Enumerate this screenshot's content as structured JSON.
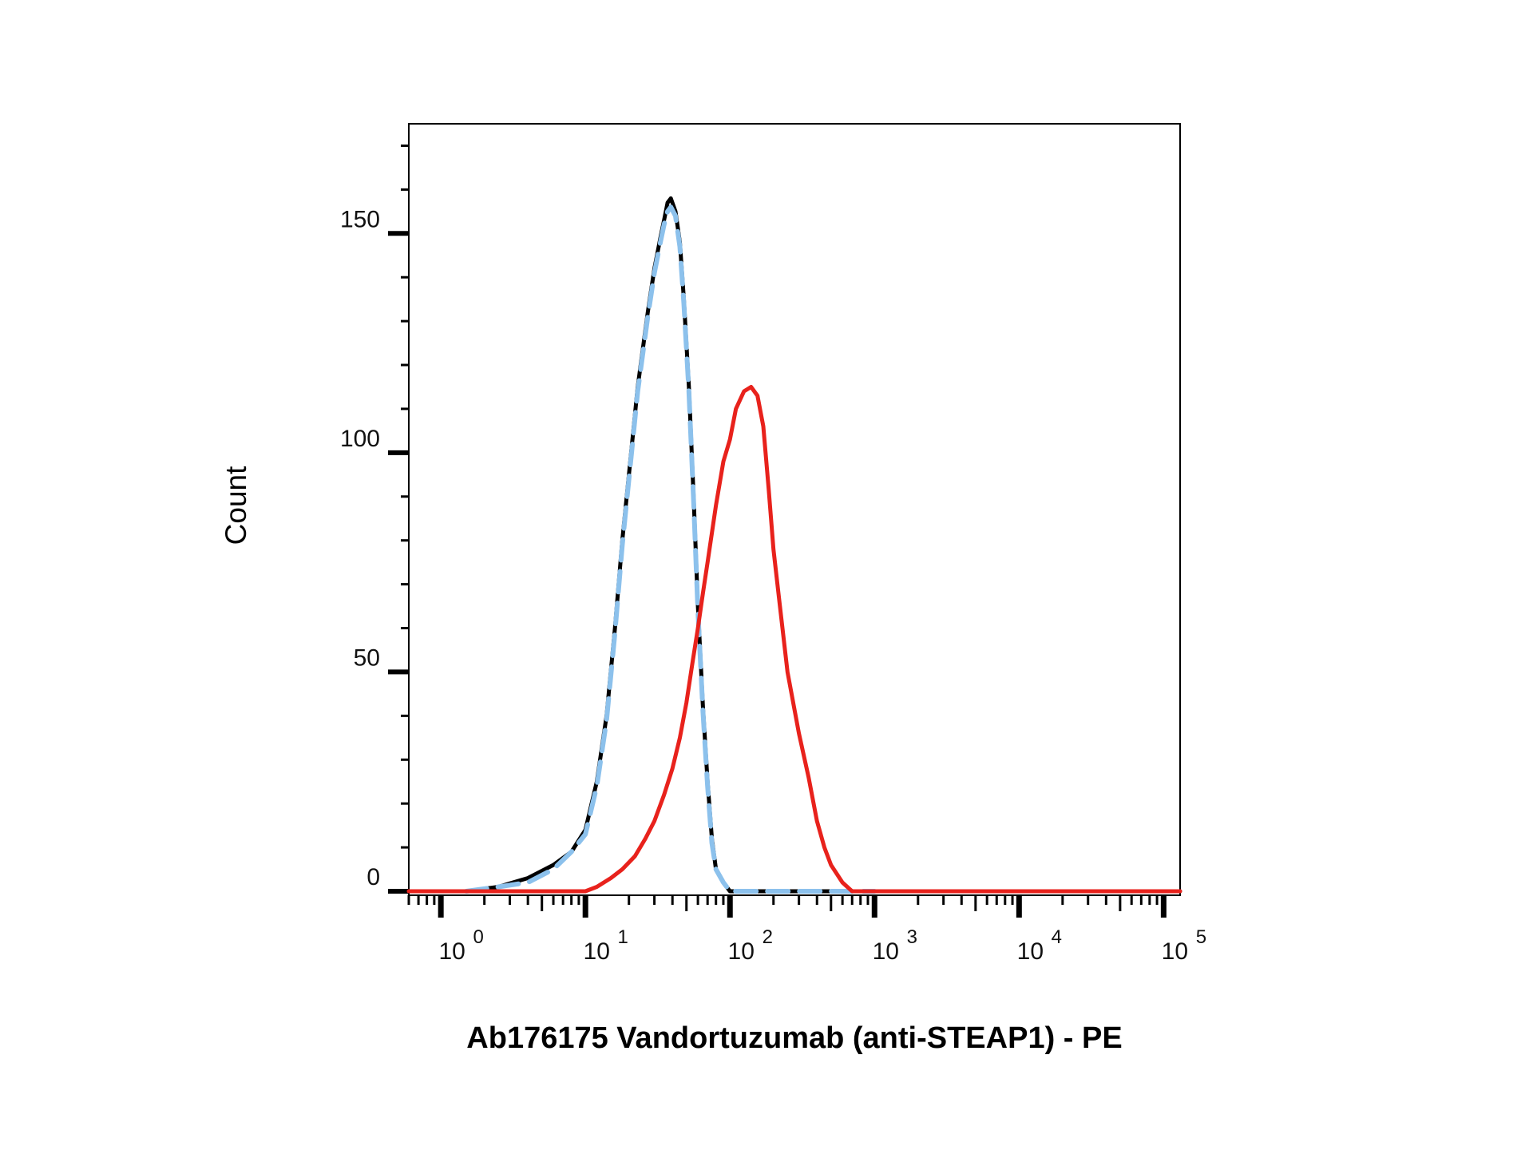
{
  "chart_data": {
    "type": "line",
    "title": "",
    "xlabel": "Ab176175 Vandortuzumab (anti-STEAP1) - PE",
    "ylabel": "Count",
    "x_scale": "log",
    "xlim": [
      0.6,
      130000
    ],
    "ylim": [
      0,
      175
    ],
    "grid": false,
    "legend": "none",
    "y_ticks": [
      {
        "value": 0,
        "label": "0"
      },
      {
        "value": 50,
        "label": "50"
      },
      {
        "value": 100,
        "label": "100"
      },
      {
        "value": 150,
        "label": "150"
      }
    ],
    "x_ticks": [
      {
        "value": 1,
        "base": "10",
        "exp": "0"
      },
      {
        "value": 10,
        "base": "10",
        "exp": "1"
      },
      {
        "value": 100,
        "base": "10",
        "exp": "2"
      },
      {
        "value": 1000,
        "base": "10",
        "exp": "3"
      },
      {
        "value": 10000,
        "base": "10",
        "exp": "4"
      },
      {
        "value": 100000,
        "base": "10",
        "exp": "5"
      }
    ],
    "series": [
      {
        "color": "#000000",
        "dash": "solid",
        "x": [
          0.6,
          1.5,
          2.5,
          4,
          6,
          8,
          10,
          12,
          14,
          16,
          18,
          20,
          23,
          27,
          30,
          33,
          35,
          37,
          39,
          42,
          45,
          48,
          52,
          56,
          60,
          65,
          70,
          75,
          80,
          90,
          100,
          115,
          130,
          200,
          400,
          1000,
          130000
        ],
        "y": [
          0,
          0,
          1,
          3,
          6,
          9,
          14,
          25,
          40,
          60,
          80,
          95,
          115,
          132,
          142,
          149,
          153,
          157,
          158,
          155,
          148,
          135,
          115,
          90,
          65,
          42,
          25,
          12,
          5,
          2,
          0,
          0,
          0,
          0,
          0,
          0,
          0
        ]
      },
      {
        "color": "#8cc1ec",
        "dash": "dashed",
        "x": [
          1.5,
          2.5,
          4,
          6,
          8,
          10,
          12,
          14,
          16,
          18,
          20,
          23,
          27,
          30,
          33,
          35,
          37,
          39,
          42,
          45,
          48,
          52,
          56,
          60,
          65,
          70,
          75,
          80,
          90,
          100,
          115,
          130,
          200,
          400,
          1000
        ],
        "y": [
          0,
          1,
          2,
          5,
          9,
          13,
          24,
          39,
          59,
          79,
          94,
          114,
          131,
          141,
          148,
          152,
          155,
          156,
          154,
          147,
          134,
          114,
          89,
          64,
          41,
          24,
          11,
          5,
          2,
          0,
          0,
          0,
          0,
          0,
          0
        ]
      },
      {
        "color": "#e8221c",
        "dash": "solid",
        "x": [
          0.6,
          5,
          10,
          12,
          15,
          18,
          22,
          26,
          30,
          35,
          40,
          45,
          50,
          55,
          60,
          65,
          70,
          80,
          90,
          100,
          110,
          125,
          140,
          155,
          170,
          185,
          200,
          220,
          250,
          300,
          350,
          400,
          450,
          500,
          600,
          700,
          800,
          1000,
          130000
        ],
        "y": [
          0,
          0,
          0,
          1,
          3,
          5,
          8,
          12,
          16,
          22,
          28,
          35,
          43,
          52,
          60,
          68,
          75,
          88,
          98,
          103,
          110,
          114,
          115,
          113,
          106,
          92,
          78,
          66,
          50,
          36,
          26,
          16,
          10,
          6,
          2,
          0,
          0,
          0,
          0
        ]
      }
    ]
  }
}
